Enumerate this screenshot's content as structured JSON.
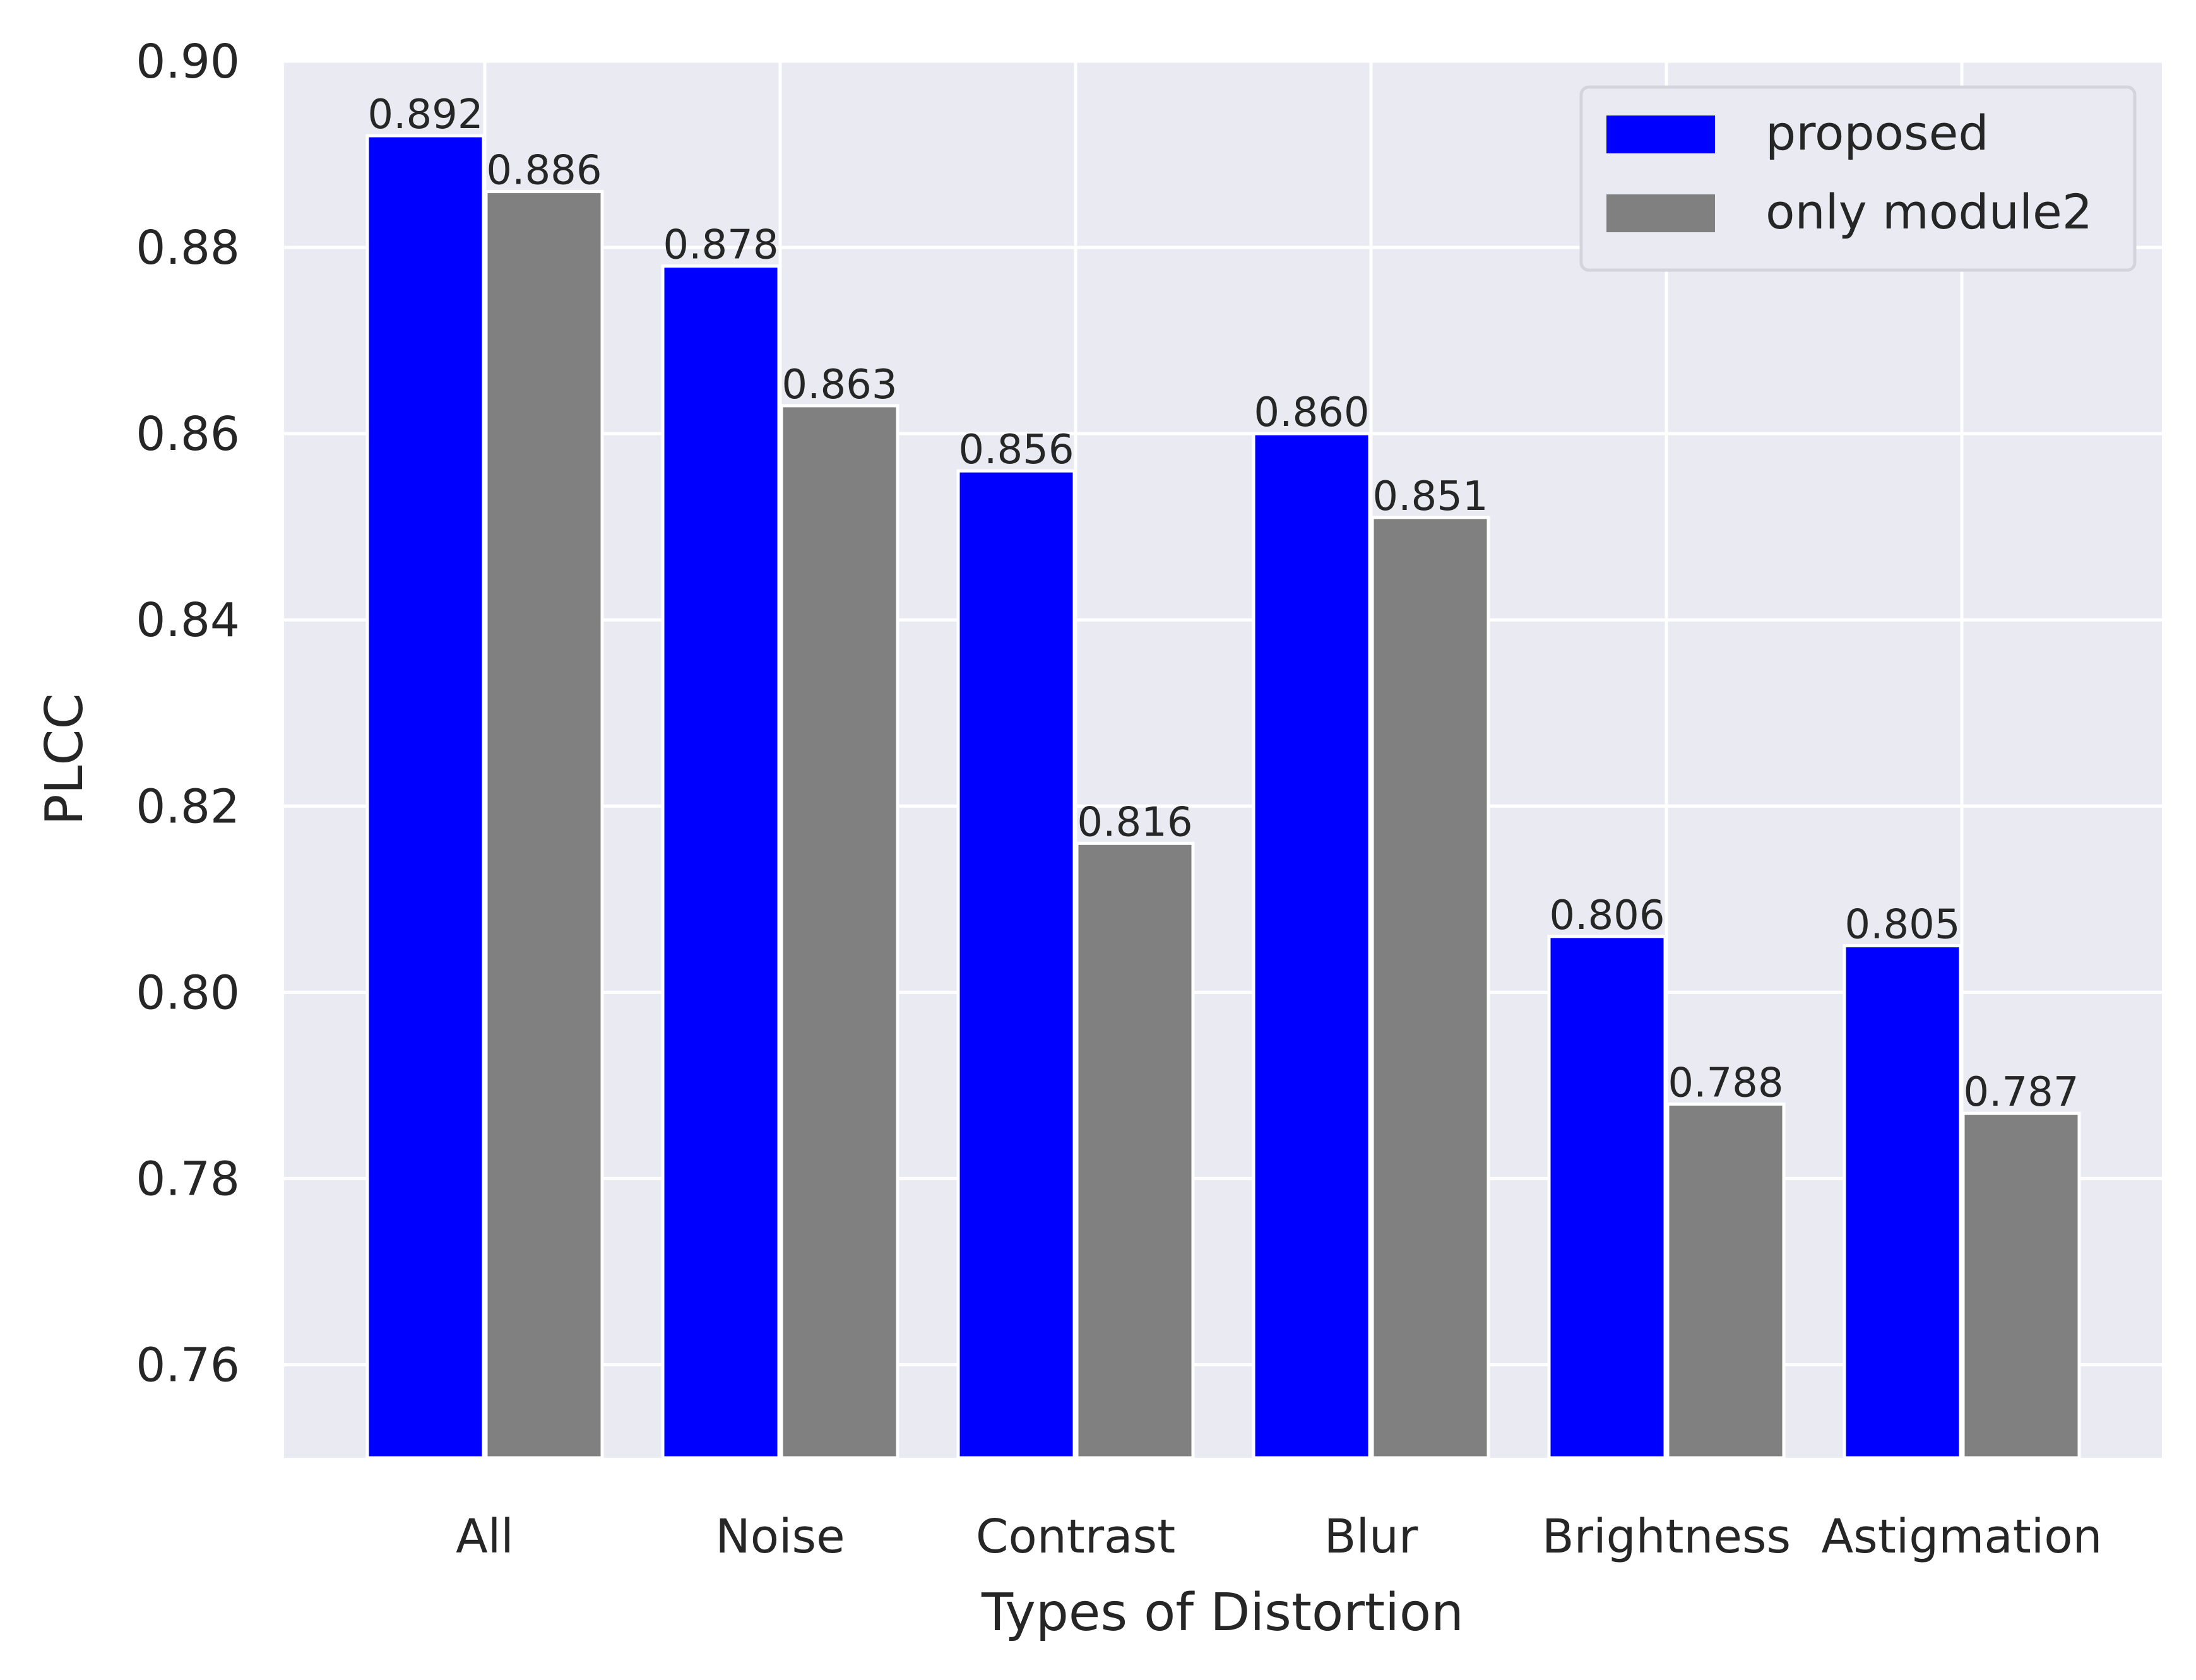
{
  "chart_data": {
    "type": "bar",
    "categories": [
      "All",
      "Noise",
      "Contrast",
      "Blur",
      "Brightness",
      "Astigmation"
    ],
    "series": [
      {
        "name": "proposed",
        "color": "#0000ff",
        "values": [
          0.892,
          0.878,
          0.856,
          0.86,
          0.806,
          0.805
        ],
        "labels": [
          "0.892",
          "0.878",
          "0.856",
          "0.860",
          "0.806",
          "0.805"
        ]
      },
      {
        "name": "only module2",
        "color": "#808080",
        "values": [
          0.886,
          0.863,
          0.816,
          0.851,
          0.788,
          0.787
        ],
        "labels": [
          "0.886",
          "0.863",
          "0.816",
          "0.851",
          "0.788",
          "0.787"
        ]
      }
    ],
    "title": "",
    "xlabel": "Types of Distortion",
    "ylabel": "PLCC",
    "ylim": [
      0.75,
      0.9
    ],
    "yticks": [
      0.76,
      0.78,
      0.8,
      0.82,
      0.84,
      0.86,
      0.88,
      0.9
    ],
    "ytick_labels": [
      "0.76",
      "0.78",
      "0.80",
      "0.82",
      "0.84",
      "0.86",
      "0.88",
      "0.90"
    ],
    "grid": true,
    "background_color": "#eaeaf2",
    "grid_color": "#ffffff",
    "legend_position": "top-right"
  }
}
